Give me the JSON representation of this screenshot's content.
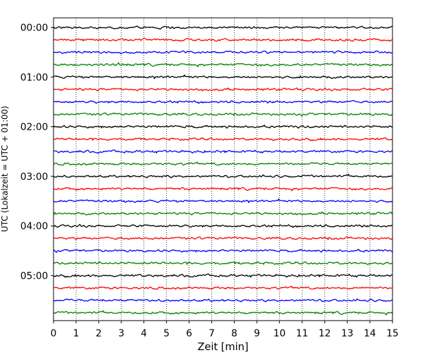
{
  "chart_data": {
    "type": "line",
    "title": "",
    "xlabel": "Zeit  [min]",
    "ylabel": "UTC (Lokalzeit = UTC + 01:00)",
    "xlim": [
      0,
      15
    ],
    "x_ticks": [
      "0",
      "1",
      "2",
      "3",
      "4",
      "5",
      "6",
      "7",
      "8",
      "9",
      "10",
      "11",
      "12",
      "13",
      "14",
      "15"
    ],
    "y_tick_labels": [
      "00:00",
      "01:00",
      "02:00",
      "03:00",
      "04:00",
      "05:00"
    ],
    "traces_per_hour": 4,
    "trace_minutes": 15,
    "trace_colors": [
      "#000000",
      "#ff0000",
      "#0000ff",
      "#008000"
    ],
    "traces": [
      {
        "start": "00:00"
      },
      {
        "start": "00:15"
      },
      {
        "start": "00:30"
      },
      {
        "start": "00:45"
      },
      {
        "start": "01:00"
      },
      {
        "start": "01:15"
      },
      {
        "start": "01:30"
      },
      {
        "start": "01:45"
      },
      {
        "start": "02:00"
      },
      {
        "start": "02:15"
      },
      {
        "start": "02:30"
      },
      {
        "start": "02:45"
      },
      {
        "start": "03:00"
      },
      {
        "start": "03:15"
      },
      {
        "start": "03:30"
      },
      {
        "start": "03:45"
      },
      {
        "start": "04:00"
      },
      {
        "start": "04:15"
      },
      {
        "start": "04:30"
      },
      {
        "start": "04:45"
      },
      {
        "start": "05:00"
      },
      {
        "start": "05:15"
      },
      {
        "start": "05:30"
      },
      {
        "start": "05:45"
      }
    ],
    "grid": {
      "x": true,
      "y": false,
      "style": "dotted"
    }
  }
}
